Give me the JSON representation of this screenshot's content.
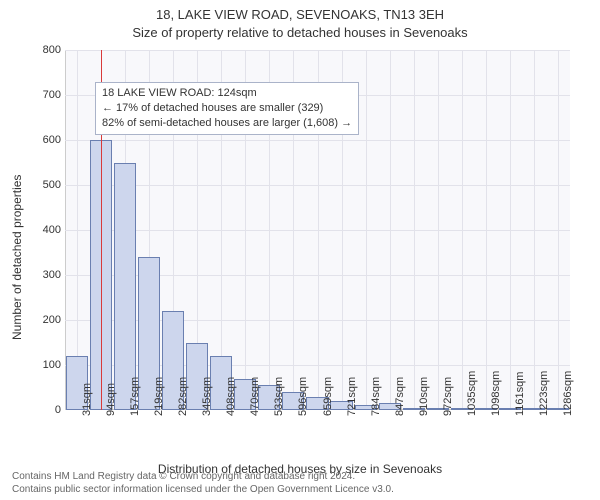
{
  "title_line1": "18, LAKE VIEW ROAD, SEVENOAKS, TN13 3EH",
  "title_line2": "Size of property relative to detached houses in Sevenoaks",
  "y_axis_label": "Number of detached properties",
  "x_axis_label": "Distribution of detached houses by size in Sevenoaks",
  "footer_line1": "Contains HM Land Registry data © Crown copyright and database right 2024.",
  "footer_line2": "Contains public sector information licensed under the Open Government Licence v3.0.",
  "chart": {
    "type": "histogram",
    "ylim": [
      0,
      800
    ],
    "ytick_step": 100,
    "background_color": "#f8f8fb",
    "grid_color": "#e2e2ea",
    "bar_fill": "#cdd6ed",
    "bar_stroke": "#6a7fb0",
    "ref_line_color": "#d93a3a",
    "annotation_bg": "#ffffff",
    "annotation_border": "#aab3c9",
    "annotation": {
      "line1": "18 LAKE VIEW ROAD: 124sqm",
      "line2": "← 17% of detached houses are smaller (329)",
      "line3": "82% of semi-detached houses are larger (1,608) →"
    },
    "ref_line_x_index": 1.5,
    "x_ticks": [
      "31sqm",
      "94sqm",
      "157sqm",
      "219sqm",
      "282sqm",
      "345sqm",
      "408sqm",
      "470sqm",
      "533sqm",
      "596sqm",
      "659sqm",
      "721sqm",
      "784sqm",
      "847sqm",
      "910sqm",
      "972sqm",
      "1035sqm",
      "1098sqm",
      "1161sqm",
      "1223sqm",
      "1286sqm"
    ],
    "bars": [
      120,
      600,
      550,
      340,
      220,
      150,
      120,
      70,
      55,
      40,
      30,
      20,
      12,
      16,
      3,
      2,
      2,
      2,
      1,
      1,
      1
    ]
  }
}
